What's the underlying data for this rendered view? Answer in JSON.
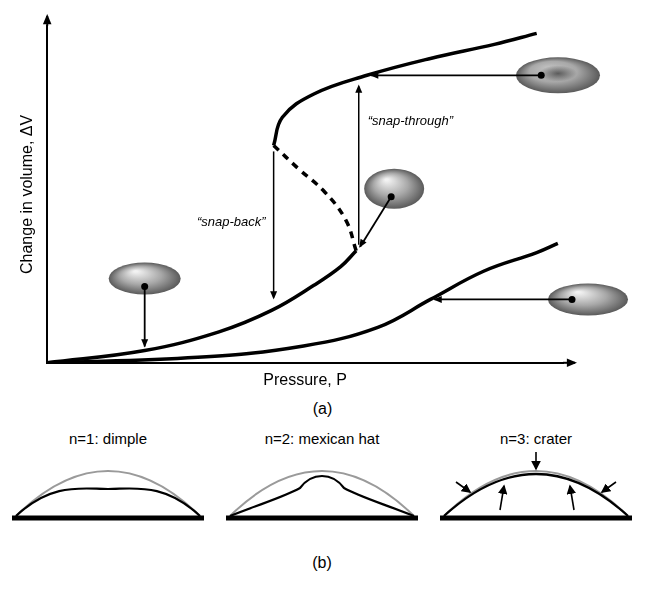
{
  "chart_data": {
    "type": "line",
    "panel_label": "(a)",
    "x_label": "Pressure, P",
    "y_label": "Change in volume, ΔV",
    "xlim": [
      0,
      100
    ],
    "ylim": [
      0,
      110
    ],
    "tick_labels": false,
    "grid": false,
    "series": [
      {
        "color": "#000000",
        "line_style": "solid",
        "marker": "none",
        "x": [
          0,
          18.9,
          33.3,
          43.5,
          51.7,
          56.9,
          59.9
        ],
        "values": [
          0,
          4.0,
          10.1,
          17.1,
          25.3,
          31.4,
          36.6
        ]
      },
      {
        "color": "#000000",
        "line_style": "dashed",
        "marker": "none",
        "x": [
          59.9,
          57.9,
          53.8,
          48.7,
          43.9
        ],
        "values": [
          36.6,
          46.6,
          55.8,
          63.4,
          71.0
        ]
      },
      {
        "color": "#000000",
        "line_style": "solid",
        "marker": "none",
        "x": [
          43.9,
          45.6,
          51.7,
          62.0,
          74.3,
          86.7,
          94.9
        ],
        "values": [
          71.0,
          80.2,
          87.8,
          93.9,
          99.4,
          104.0,
          107.6
        ]
      },
      {
        "color": "#000000",
        "line_style": "solid",
        "marker": "none",
        "x": [
          0,
          29.2,
          49.7,
          64.1,
          74.3,
          84.6,
          94.9,
          99
        ],
        "values": [
          0,
          1.8,
          5.5,
          11.6,
          20.7,
          29.9,
          36.0,
          39.0
        ]
      }
    ],
    "annotations": [
      {
        "text": "“snap-back”",
        "x": 43.9,
        "y_from": 71.0,
        "y_to": 20.7
      },
      {
        "text": "“snap-through”",
        "x": 60.4,
        "y_from": 36.6,
        "y_to": 90.9
      }
    ]
  },
  "panel_b": {
    "label": "(b)",
    "items": [
      {
        "text": "n=1: dimple"
      },
      {
        "text": "n=2: mexican hat"
      },
      {
        "text": "n=3: crater"
      }
    ]
  }
}
